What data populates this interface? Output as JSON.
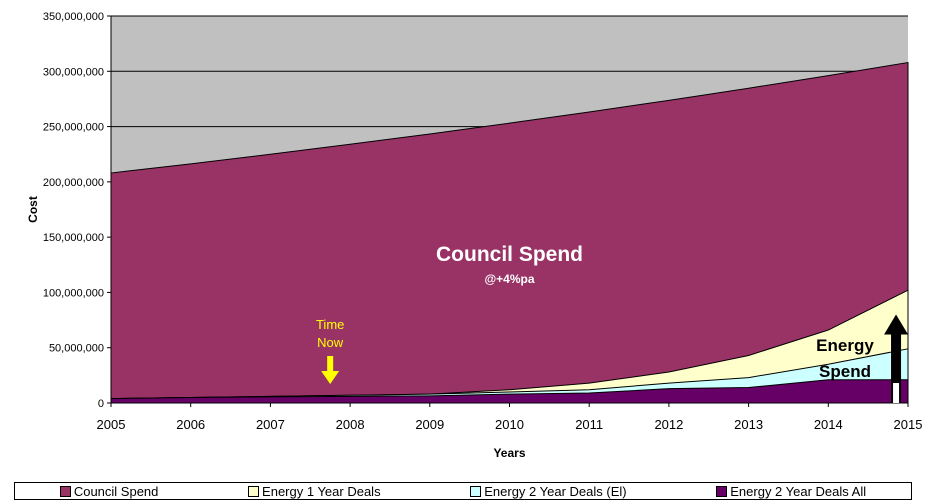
{
  "chart_data": {
    "type": "area",
    "stacked": false,
    "xlabel": "Years",
    "ylabel": "Cost",
    "x": [
      2005,
      2006,
      2007,
      2008,
      2009,
      2010,
      2011,
      2012,
      2013,
      2014,
      2015
    ],
    "x_tick_labels": [
      "2005",
      "2006",
      "2007",
      "2008",
      "2009",
      "2010",
      "2011",
      "2012",
      "2013",
      "2014",
      "2015"
    ],
    "ylim": [
      0,
      350000000
    ],
    "y_ticks": [
      0,
      50000000,
      100000000,
      150000000,
      200000000,
      250000000,
      300000000,
      350000000
    ],
    "y_tick_labels": [
      "0",
      "50,000,000",
      "100,000,000",
      "150,000,000",
      "200,000,000",
      "250,000,000",
      "300,000,000",
      "350,000,000"
    ],
    "grid": "horizontal",
    "plot_background": "#c0c0c0",
    "series": [
      {
        "name": "Council Spend",
        "color": "#993366",
        "values": [
          208000000,
          216300000,
          225000000,
          234000000,
          243300000,
          253100000,
          263200000,
          273700000,
          284700000,
          296100000,
          307900000
        ]
      },
      {
        "name": "Energy 1 Year Deals",
        "color": "#ffffcc",
        "values": [
          4000000,
          5000000,
          6000000,
          7000000,
          8000000,
          12000000,
          18000000,
          28000000,
          43000000,
          66000000,
          102000000
        ]
      },
      {
        "name": "Energy 2 Year Deals (El)",
        "color": "#ccffff",
        "values": [
          4000000,
          5000000,
          6000000,
          7000000,
          8000000,
          10000000,
          12000000,
          18000000,
          23000000,
          35000000,
          49000000
        ]
      },
      {
        "name": "Energy 2 Year Deals All",
        "color": "#660066",
        "values": [
          4000000,
          5000000,
          5500000,
          6000000,
          6500000,
          8000000,
          9000000,
          13000000,
          14000000,
          21000000,
          21000000
        ]
      }
    ],
    "legend_position": "bottom",
    "annotations": {
      "main_label": "Council Spend",
      "main_sublabel": "@+4%pa",
      "time_now": [
        "Time",
        "Now"
      ],
      "time_now_color": "#ffff00",
      "time_now_x": 2007.75,
      "energy_spend": [
        "Energy",
        "Spend"
      ],
      "energy_arrow_x": 2014.85,
      "energy_arrow_y": [
        0,
        80000000
      ]
    }
  }
}
